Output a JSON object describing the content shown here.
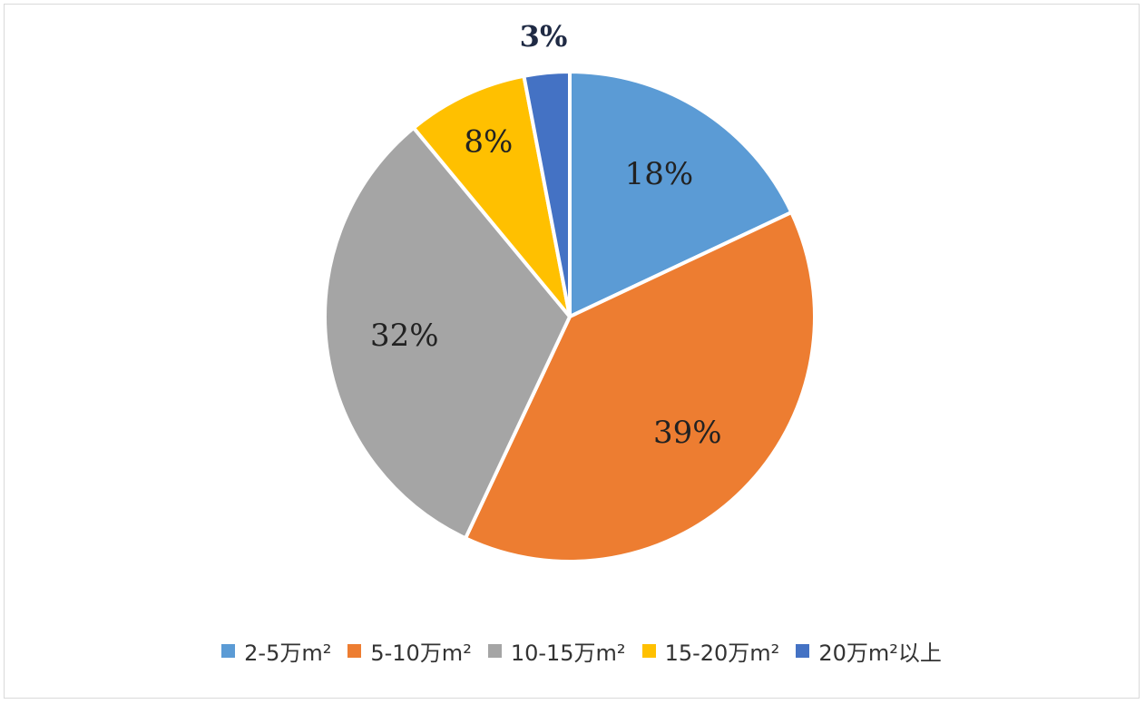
{
  "chart_data": {
    "type": "pie",
    "title": "",
    "slices": [
      {
        "name": "2-5万m²",
        "value": 18,
        "label": "18%",
        "color": "#5b9bd5"
      },
      {
        "name": "5-10万m²",
        "value": 39,
        "label": "39%",
        "color": "#ed7d31"
      },
      {
        "name": "10-15万m²",
        "value": 32,
        "label": "32%",
        "color": "#a5a5a5"
      },
      {
        "name": "15-20万m²",
        "value": 8,
        "label": "8%",
        "color": "#ffc000"
      },
      {
        "name": "20万m²以上",
        "value": 3,
        "label": "3%",
        "color": "#4472c4"
      }
    ],
    "legend_position": "bottom",
    "start_angle": "top",
    "direction": "clockwise"
  }
}
